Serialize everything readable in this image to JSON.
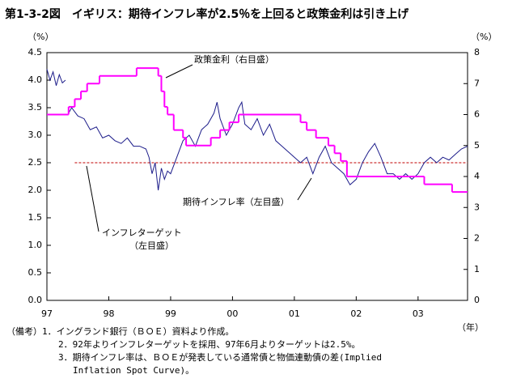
{
  "chart_data": {
    "type": "line",
    "title": "第1-3-2図　イギリス：期待インフレ率が2.5％を上回ると政策金利は引き上げ",
    "ylabel": "（%）",
    "y2label": "（%）",
    "xlabel": "（年）",
    "xlim": [
      1997,
      2003.8
    ],
    "xticks": [
      {
        "value": 1997,
        "label": "97"
      },
      {
        "value": 1998,
        "label": "98"
      },
      {
        "value": 1999,
        "label": "99"
      },
      {
        "value": 2000,
        "label": "00"
      },
      {
        "value": 2001,
        "label": "01"
      },
      {
        "value": 2002,
        "label": "02"
      },
      {
        "value": 2003,
        "label": "03"
      }
    ],
    "ylim": [
      0,
      4.5
    ],
    "yticks": [
      {
        "value": 0,
        "label": "0.0"
      },
      {
        "value": 0.5,
        "label": "0.5"
      },
      {
        "value": 1,
        "label": "1.0"
      },
      {
        "value": 1.5,
        "label": "1.5"
      },
      {
        "value": 2,
        "label": "2.0"
      },
      {
        "value": 2.5,
        "label": "2.5"
      },
      {
        "value": 3,
        "label": "3.0"
      },
      {
        "value": 3.5,
        "label": "3.5"
      },
      {
        "value": 4,
        "label": "4.0"
      },
      {
        "value": 4.5,
        "label": "4.5"
      }
    ],
    "y2lim": [
      0,
      8
    ],
    "y2ticks": [
      0,
      1,
      2,
      3,
      4,
      5,
      6,
      7,
      8
    ],
    "series": [
      {
        "name": "期待インフレ率（左目盛）",
        "color": "#1c1c8a",
        "x": [
          1997.0,
          1997.05,
          1997.1,
          1997.15,
          1997.2,
          1997.25,
          1997.3,
          1997.32,
          1997.35,
          1997.4,
          1997.5,
          1997.6,
          1997.7,
          1997.8,
          1997.9,
          1998.0,
          1998.1,
          1998.2,
          1998.3,
          1998.4,
          1998.5,
          1998.6,
          1998.65,
          1998.7,
          1998.75,
          1998.8,
          1998.85,
          1998.9,
          1998.95,
          1999.0,
          1999.1,
          1999.2,
          1999.3,
          1999.4,
          1999.5,
          1999.6,
          1999.7,
          1999.75,
          1999.8,
          1999.9,
          2000.0,
          2000.1,
          2000.15,
          2000.2,
          2000.3,
          2000.4,
          2000.5,
          2000.6,
          2000.7,
          2000.8,
          2000.9,
          2001.0,
          2001.1,
          2001.2,
          2001.3,
          2001.4,
          2001.5,
          2001.6,
          2001.7,
          2001.8,
          2001.9,
          2002.0,
          2002.1,
          2002.2,
          2002.3,
          2002.4,
          2002.5,
          2002.6,
          2002.7,
          2002.8,
          2002.9,
          2003.0,
          2003.1,
          2003.2,
          2003.3,
          2003.4,
          2003.5,
          2003.6,
          2003.7,
          2003.8
        ],
        "values": [
          4.2,
          4.0,
          4.15,
          3.9,
          4.1,
          3.95,
          4.0,
          null,
          3.4,
          3.5,
          3.35,
          3.3,
          3.1,
          3.15,
          2.95,
          3.0,
          2.9,
          2.85,
          2.95,
          2.8,
          2.8,
          2.75,
          2.6,
          2.3,
          2.5,
          2.0,
          2.4,
          2.2,
          2.35,
          2.3,
          2.6,
          2.9,
          3.0,
          2.8,
          3.1,
          3.2,
          3.4,
          3.6,
          3.3,
          3.0,
          3.2,
          3.5,
          3.6,
          3.2,
          3.1,
          3.3,
          3.0,
          3.2,
          2.9,
          2.8,
          2.7,
          2.6,
          2.5,
          2.6,
          2.3,
          2.6,
          2.8,
          2.5,
          2.4,
          2.3,
          2.1,
          2.2,
          2.5,
          2.7,
          2.85,
          2.6,
          2.3,
          2.3,
          2.2,
          2.3,
          2.2,
          2.3,
          2.5,
          2.6,
          2.5,
          2.6,
          2.55,
          2.65,
          2.75,
          2.8
        ]
      },
      {
        "name": "政策金利（右目盛）",
        "color": "#ff00ff",
        "axis": "y2",
        "step": true,
        "x": [
          1997.0,
          1997.35,
          1997.45,
          1997.55,
          1997.65,
          1997.85,
          1998.45,
          1998.8,
          1998.85,
          1998.9,
          1998.95,
          1999.05,
          1999.2,
          1999.25,
          1999.65,
          1999.8,
          1999.95,
          2000.1,
          2001.1,
          2001.2,
          2001.35,
          2001.55,
          2001.65,
          2001.75,
          2001.85,
          2003.1,
          2003.55
        ],
        "values": [
          6.0,
          6.25,
          6.5,
          6.75,
          7.0,
          7.25,
          7.5,
          7.25,
          6.75,
          6.25,
          6.0,
          5.5,
          5.25,
          5.0,
          5.25,
          5.5,
          5.75,
          6.0,
          5.75,
          5.5,
          5.25,
          5.0,
          4.75,
          4.5,
          4.0,
          3.75,
          3.5
        ]
      }
    ],
    "reference_line": {
      "value": 2.5,
      "color": "#c00000",
      "label": [
        "インフレターゲット",
        "（左目盛）"
      ]
    },
    "notes": [
      "（備考）1．イングランド銀行（ＢＯＥ）資料より作成。",
      "2．92年よりインフレターゲットを採用、97年6月よりターゲットは2.5%。",
      "3．期待インフレ率は、ＢＯＥが発表している通常債と物価連動債の差(Implied",
      "Inflation Spot Curve)。"
    ]
  }
}
